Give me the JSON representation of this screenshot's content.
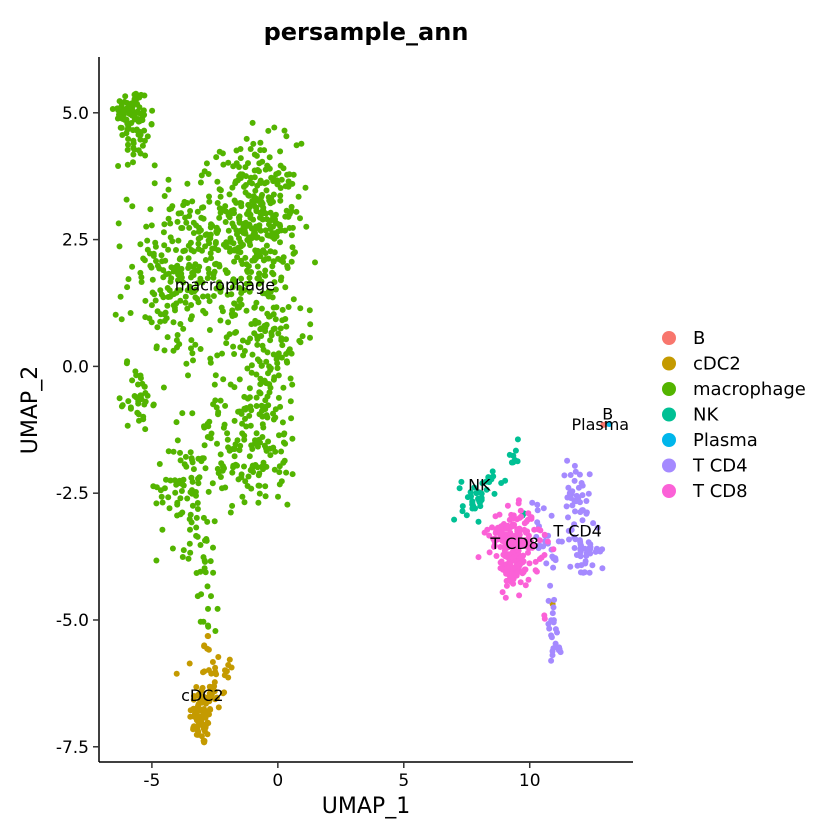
{
  "chart_data": {
    "type": "scatter",
    "title": "persample_ann",
    "xlabel": "UMAP_1",
    "ylabel": "UMAP_2",
    "xlim": [
      -7.1,
      14.1
    ],
    "ylim": [
      -7.8,
      6.1
    ],
    "xticks": [
      -5,
      0,
      5,
      10
    ],
    "yticks": [
      -7.5,
      -5.0,
      -2.5,
      0.0,
      2.5,
      5.0
    ],
    "xtick_labels": [
      "-5",
      "0",
      "5",
      "10"
    ],
    "ytick_labels": [
      "-7.5",
      "-5.0",
      "-2.5",
      "0.0",
      "2.5",
      "5.0"
    ],
    "legend_position": "right",
    "series": [
      {
        "name": "B",
        "color": "#F8766D",
        "label": "B",
        "label_at": [
          13.1,
          -1.05
        ],
        "clusters": [
          {
            "x": 12.9,
            "y": -1.1,
            "sx": 0.05,
            "sy": 0.05,
            "n": 2
          }
        ]
      },
      {
        "name": "cDC2",
        "color": "#C49A00",
        "label": "cDC2",
        "label_at": [
          -3.0,
          -6.6
        ],
        "clusters": [
          {
            "x": -3.0,
            "y": -6.9,
            "sx": 0.25,
            "sy": 0.3,
            "n": 70
          },
          {
            "x": -2.6,
            "y": -6.2,
            "sx": 0.35,
            "sy": 0.3,
            "n": 30
          },
          {
            "x": -2.9,
            "y": -5.5,
            "sx": 0.15,
            "sy": 0.2,
            "n": 6
          },
          {
            "x": -1.9,
            "y": -5.9,
            "sx": 0.1,
            "sy": 0.08,
            "n": 4
          },
          {
            "x": 10.9,
            "y": -4.7,
            "sx": 0.02,
            "sy": 0.02,
            "n": 1
          }
        ]
      },
      {
        "name": "macrophage",
        "color": "#53B400",
        "label": "macrophage",
        "label_at": [
          -2.1,
          1.5
        ],
        "clusters": [
          {
            "x": -5.8,
            "y": 5.0,
            "sx": 0.35,
            "sy": 0.25,
            "n": 70
          },
          {
            "x": -5.5,
            "y": 4.4,
            "sx": 0.3,
            "sy": 0.3,
            "n": 25
          },
          {
            "x": -0.9,
            "y": 2.9,
            "sx": 0.85,
            "sy": 0.75,
            "n": 330
          },
          {
            "x": -3.8,
            "y": 1.8,
            "sx": 1.05,
            "sy": 0.9,
            "n": 260
          },
          {
            "x": -0.5,
            "y": 0.6,
            "sx": 0.8,
            "sy": 0.8,
            "n": 150
          },
          {
            "x": -5.5,
            "y": -0.7,
            "sx": 0.25,
            "sy": 0.3,
            "n": 35
          },
          {
            "x": -1.2,
            "y": -1.6,
            "sx": 1.1,
            "sy": 0.6,
            "n": 160
          },
          {
            "x": -3.7,
            "y": -2.4,
            "sx": 0.55,
            "sy": 0.6,
            "n": 70
          },
          {
            "x": -2.9,
            "y": -3.9,
            "sx": 0.2,
            "sy": 0.55,
            "n": 22
          },
          {
            "x": -2.5,
            "y": -5.1,
            "sx": 0.15,
            "sy": 0.25,
            "n": 5
          }
        ]
      },
      {
        "name": "NK",
        "color": "#00C094",
        "label": "NK",
        "label_at": [
          8.0,
          -2.45
        ],
        "clusters": [
          {
            "x": 7.8,
            "y": -2.6,
            "sx": 0.25,
            "sy": 0.2,
            "n": 30
          },
          {
            "x": 8.6,
            "y": -2.3,
            "sx": 0.25,
            "sy": 0.1,
            "n": 10
          },
          {
            "x": 9.4,
            "y": -1.75,
            "sx": 0.12,
            "sy": 0.12,
            "n": 10
          },
          {
            "x": 9.7,
            "y": -2.9,
            "sx": 0.05,
            "sy": 0.05,
            "n": 2
          }
        ]
      },
      {
        "name": "Plasma",
        "color": "#00B6EB",
        "label": "Plasma",
        "label_at": [
          12.8,
          -1.25
        ],
        "clusters": [
          {
            "x": 13.2,
            "y": -1.15,
            "sx": 0.03,
            "sy": 0.03,
            "n": 1
          }
        ]
      },
      {
        "name": "T CD4",
        "color": "#A58AFF",
        "label": "T CD4",
        "label_at": [
          11.9,
          -3.35
        ],
        "clusters": [
          {
            "x": 11.8,
            "y": -2.6,
            "sx": 0.3,
            "sy": 0.35,
            "n": 40
          },
          {
            "x": 12.2,
            "y": -3.6,
            "sx": 0.3,
            "sy": 0.3,
            "n": 40
          },
          {
            "x": 10.8,
            "y": -3.7,
            "sx": 0.35,
            "sy": 0.3,
            "n": 20
          },
          {
            "x": 10.9,
            "y": -5.1,
            "sx": 0.12,
            "sy": 0.3,
            "n": 18
          },
          {
            "x": 11.1,
            "y": -5.6,
            "sx": 0.1,
            "sy": 0.12,
            "n": 6
          },
          {
            "x": 10.2,
            "y": -2.9,
            "sx": 0.2,
            "sy": 0.15,
            "n": 5
          }
        ]
      },
      {
        "name": "T CD8",
        "color": "#FB61D7",
        "label": "T CD8",
        "label_at": [
          9.4,
          -3.6
        ],
        "clusters": [
          {
            "x": 9.3,
            "y": -3.3,
            "sx": 0.45,
            "sy": 0.25,
            "n": 130
          },
          {
            "x": 9.4,
            "y": -3.9,
            "sx": 0.3,
            "sy": 0.25,
            "n": 90
          },
          {
            "x": 10.3,
            "y": -3.6,
            "sx": 0.25,
            "sy": 0.25,
            "n": 14
          },
          {
            "x": 10.6,
            "y": -4.9,
            "sx": 0.1,
            "sy": 0.1,
            "n": 2
          }
        ]
      }
    ]
  }
}
